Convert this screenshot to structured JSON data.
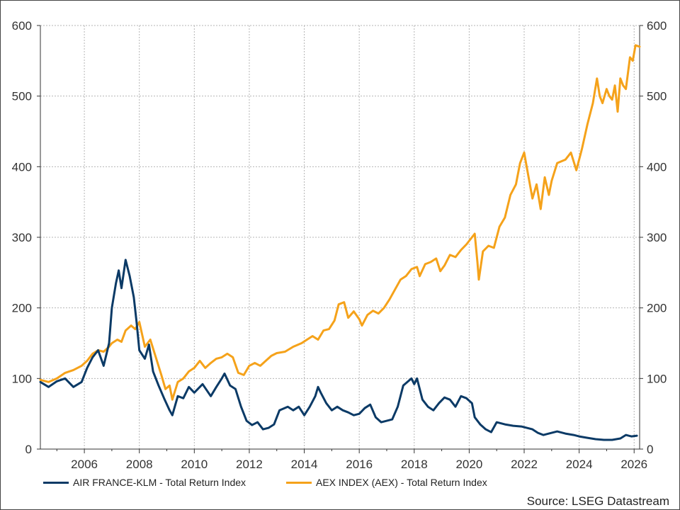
{
  "chart_data": {
    "type": "line",
    "title": "",
    "xlabel": "",
    "ylabel": "",
    "xlim": [
      2004.4,
      2026.2
    ],
    "ylim": [
      0,
      600
    ],
    "grid": true,
    "x_ticks": [
      "2006",
      "2008",
      "2010",
      "2012",
      "2014",
      "2016",
      "2018",
      "2020",
      "2022",
      "2024",
      "2026"
    ],
    "y_ticks_left": [
      "0",
      "100",
      "200",
      "300",
      "400",
      "500",
      "600"
    ],
    "y_ticks_right": [
      "0",
      "100",
      "200",
      "300",
      "400",
      "500",
      "600"
    ],
    "legend_position": "bottom-left",
    "series": [
      {
        "name": "AIR FRANCE-KLM - Total Return Index",
        "color": "#0b3a66",
        "points": [
          [
            2004.4,
            95
          ],
          [
            2004.7,
            88
          ],
          [
            2005.0,
            96
          ],
          [
            2005.3,
            100
          ],
          [
            2005.6,
            88
          ],
          [
            2005.9,
            95
          ],
          [
            2006.1,
            115
          ],
          [
            2006.3,
            130
          ],
          [
            2006.5,
            140
          ],
          [
            2006.7,
            118
          ],
          [
            2006.9,
            150
          ],
          [
            2007.0,
            200
          ],
          [
            2007.15,
            235
          ],
          [
            2007.25,
            253
          ],
          [
            2007.35,
            228
          ],
          [
            2007.5,
            268
          ],
          [
            2007.65,
            245
          ],
          [
            2007.8,
            215
          ],
          [
            2007.9,
            180
          ],
          [
            2008.0,
            140
          ],
          [
            2008.2,
            128
          ],
          [
            2008.35,
            148
          ],
          [
            2008.5,
            110
          ],
          [
            2008.7,
            90
          ],
          [
            2008.9,
            72
          ],
          [
            2009.1,
            55
          ],
          [
            2009.2,
            48
          ],
          [
            2009.4,
            75
          ],
          [
            2009.6,
            72
          ],
          [
            2009.8,
            88
          ],
          [
            2010.0,
            80
          ],
          [
            2010.3,
            92
          ],
          [
            2010.6,
            75
          ],
          [
            2010.8,
            88
          ],
          [
            2011.0,
            100
          ],
          [
            2011.1,
            107
          ],
          [
            2011.3,
            90
          ],
          [
            2011.5,
            85
          ],
          [
            2011.7,
            60
          ],
          [
            2011.9,
            40
          ],
          [
            2012.1,
            34
          ],
          [
            2012.3,
            38
          ],
          [
            2012.5,
            28
          ],
          [
            2012.7,
            30
          ],
          [
            2012.9,
            35
          ],
          [
            2013.1,
            55
          ],
          [
            2013.4,
            60
          ],
          [
            2013.6,
            55
          ],
          [
            2013.8,
            60
          ],
          [
            2014.0,
            48
          ],
          [
            2014.2,
            60
          ],
          [
            2014.4,
            75
          ],
          [
            2014.5,
            88
          ],
          [
            2014.6,
            80
          ],
          [
            2014.8,
            65
          ],
          [
            2015.0,
            55
          ],
          [
            2015.2,
            60
          ],
          [
            2015.4,
            55
          ],
          [
            2015.6,
            52
          ],
          [
            2015.8,
            48
          ],
          [
            2016.0,
            50
          ],
          [
            2016.2,
            58
          ],
          [
            2016.4,
            63
          ],
          [
            2016.6,
            45
          ],
          [
            2016.8,
            38
          ],
          [
            2017.0,
            40
          ],
          [
            2017.2,
            42
          ],
          [
            2017.4,
            60
          ],
          [
            2017.6,
            90
          ],
          [
            2017.75,
            95
          ],
          [
            2017.9,
            100
          ],
          [
            2018.0,
            92
          ],
          [
            2018.1,
            100
          ],
          [
            2018.3,
            70
          ],
          [
            2018.5,
            60
          ],
          [
            2018.7,
            55
          ],
          [
            2018.9,
            65
          ],
          [
            2019.1,
            73
          ],
          [
            2019.3,
            70
          ],
          [
            2019.5,
            60
          ],
          [
            2019.7,
            75
          ],
          [
            2019.9,
            72
          ],
          [
            2020.1,
            65
          ],
          [
            2020.2,
            45
          ],
          [
            2020.4,
            35
          ],
          [
            2020.6,
            28
          ],
          [
            2020.8,
            24
          ],
          [
            2021.0,
            38
          ],
          [
            2021.3,
            35
          ],
          [
            2021.6,
            33
          ],
          [
            2021.9,
            32
          ],
          [
            2022.1,
            30
          ],
          [
            2022.3,
            28
          ],
          [
            2022.5,
            23
          ],
          [
            2022.7,
            20
          ],
          [
            2022.9,
            22
          ],
          [
            2023.2,
            25
          ],
          [
            2023.5,
            22
          ],
          [
            2023.8,
            20
          ],
          [
            2024.0,
            18
          ],
          [
            2024.3,
            16
          ],
          [
            2024.6,
            14
          ],
          [
            2024.9,
            13
          ],
          [
            2025.2,
            13
          ],
          [
            2025.5,
            15
          ],
          [
            2025.7,
            20
          ],
          [
            2025.9,
            18
          ],
          [
            2026.1,
            19
          ]
        ]
      },
      {
        "name": "AEX INDEX (AEX) - Total Return Index",
        "color": "#f5a21a",
        "points": [
          [
            2004.4,
            98
          ],
          [
            2004.7,
            95
          ],
          [
            2005.0,
            100
          ],
          [
            2005.3,
            108
          ],
          [
            2005.6,
            112
          ],
          [
            2005.9,
            118
          ],
          [
            2006.1,
            125
          ],
          [
            2006.3,
            135
          ],
          [
            2006.5,
            140
          ],
          [
            2006.7,
            138
          ],
          [
            2006.9,
            145
          ],
          [
            2007.0,
            150
          ],
          [
            2007.2,
            155
          ],
          [
            2007.35,
            152
          ],
          [
            2007.5,
            168
          ],
          [
            2007.7,
            175
          ],
          [
            2007.85,
            170
          ],
          [
            2008.0,
            180
          ],
          [
            2008.2,
            145
          ],
          [
            2008.4,
            155
          ],
          [
            2008.6,
            130
          ],
          [
            2008.8,
            105
          ],
          [
            2008.95,
            85
          ],
          [
            2009.1,
            90
          ],
          [
            2009.2,
            70
          ],
          [
            2009.4,
            95
          ],
          [
            2009.6,
            100
          ],
          [
            2009.8,
            110
          ],
          [
            2010.0,
            115
          ],
          [
            2010.2,
            125
          ],
          [
            2010.4,
            115
          ],
          [
            2010.6,
            122
          ],
          [
            2010.8,
            128
          ],
          [
            2011.0,
            130
          ],
          [
            2011.2,
            135
          ],
          [
            2011.4,
            130
          ],
          [
            2011.6,
            108
          ],
          [
            2011.8,
            105
          ],
          [
            2012.0,
            118
          ],
          [
            2012.2,
            122
          ],
          [
            2012.4,
            118
          ],
          [
            2012.6,
            125
          ],
          [
            2012.8,
            132
          ],
          [
            2013.0,
            136
          ],
          [
            2013.3,
            138
          ],
          [
            2013.6,
            145
          ],
          [
            2013.9,
            150
          ],
          [
            2014.1,
            155
          ],
          [
            2014.3,
            160
          ],
          [
            2014.5,
            155
          ],
          [
            2014.7,
            168
          ],
          [
            2014.9,
            170
          ],
          [
            2015.1,
            182
          ],
          [
            2015.25,
            205
          ],
          [
            2015.45,
            208
          ],
          [
            2015.6,
            186
          ],
          [
            2015.8,
            195
          ],
          [
            2016.0,
            184
          ],
          [
            2016.1,
            175
          ],
          [
            2016.3,
            190
          ],
          [
            2016.5,
            196
          ],
          [
            2016.7,
            192
          ],
          [
            2016.9,
            200
          ],
          [
            2017.1,
            212
          ],
          [
            2017.3,
            226
          ],
          [
            2017.5,
            240
          ],
          [
            2017.7,
            245
          ],
          [
            2017.9,
            255
          ],
          [
            2018.1,
            258
          ],
          [
            2018.2,
            245
          ],
          [
            2018.4,
            262
          ],
          [
            2018.6,
            265
          ],
          [
            2018.8,
            270
          ],
          [
            2018.95,
            252
          ],
          [
            2019.1,
            260
          ],
          [
            2019.3,
            275
          ],
          [
            2019.5,
            272
          ],
          [
            2019.7,
            282
          ],
          [
            2019.9,
            290
          ],
          [
            2020.1,
            300
          ],
          [
            2020.2,
            305
          ],
          [
            2020.3,
            265
          ],
          [
            2020.35,
            240
          ],
          [
            2020.5,
            280
          ],
          [
            2020.7,
            288
          ],
          [
            2020.9,
            285
          ],
          [
            2021.1,
            315
          ],
          [
            2021.3,
            328
          ],
          [
            2021.5,
            360
          ],
          [
            2021.7,
            375
          ],
          [
            2021.85,
            405
          ],
          [
            2022.0,
            420
          ],
          [
            2022.1,
            398
          ],
          [
            2022.3,
            355
          ],
          [
            2022.45,
            375
          ],
          [
            2022.6,
            340
          ],
          [
            2022.75,
            385
          ],
          [
            2022.9,
            360
          ],
          [
            2023.0,
            380
          ],
          [
            2023.2,
            405
          ],
          [
            2023.5,
            410
          ],
          [
            2023.7,
            420
          ],
          [
            2023.9,
            395
          ],
          [
            2024.1,
            425
          ],
          [
            2024.3,
            460
          ],
          [
            2024.5,
            490
          ],
          [
            2024.65,
            525
          ],
          [
            2024.75,
            500
          ],
          [
            2024.85,
            490
          ],
          [
            2025.0,
            510
          ],
          [
            2025.1,
            500
          ],
          [
            2025.2,
            495
          ],
          [
            2025.3,
            515
          ],
          [
            2025.4,
            478
          ],
          [
            2025.5,
            525
          ],
          [
            2025.6,
            515
          ],
          [
            2025.7,
            510
          ],
          [
            2025.85,
            555
          ],
          [
            2025.95,
            550
          ],
          [
            2026.05,
            572
          ],
          [
            2026.2,
            570
          ]
        ]
      }
    ]
  },
  "source": "Source: LSEG Datastream"
}
